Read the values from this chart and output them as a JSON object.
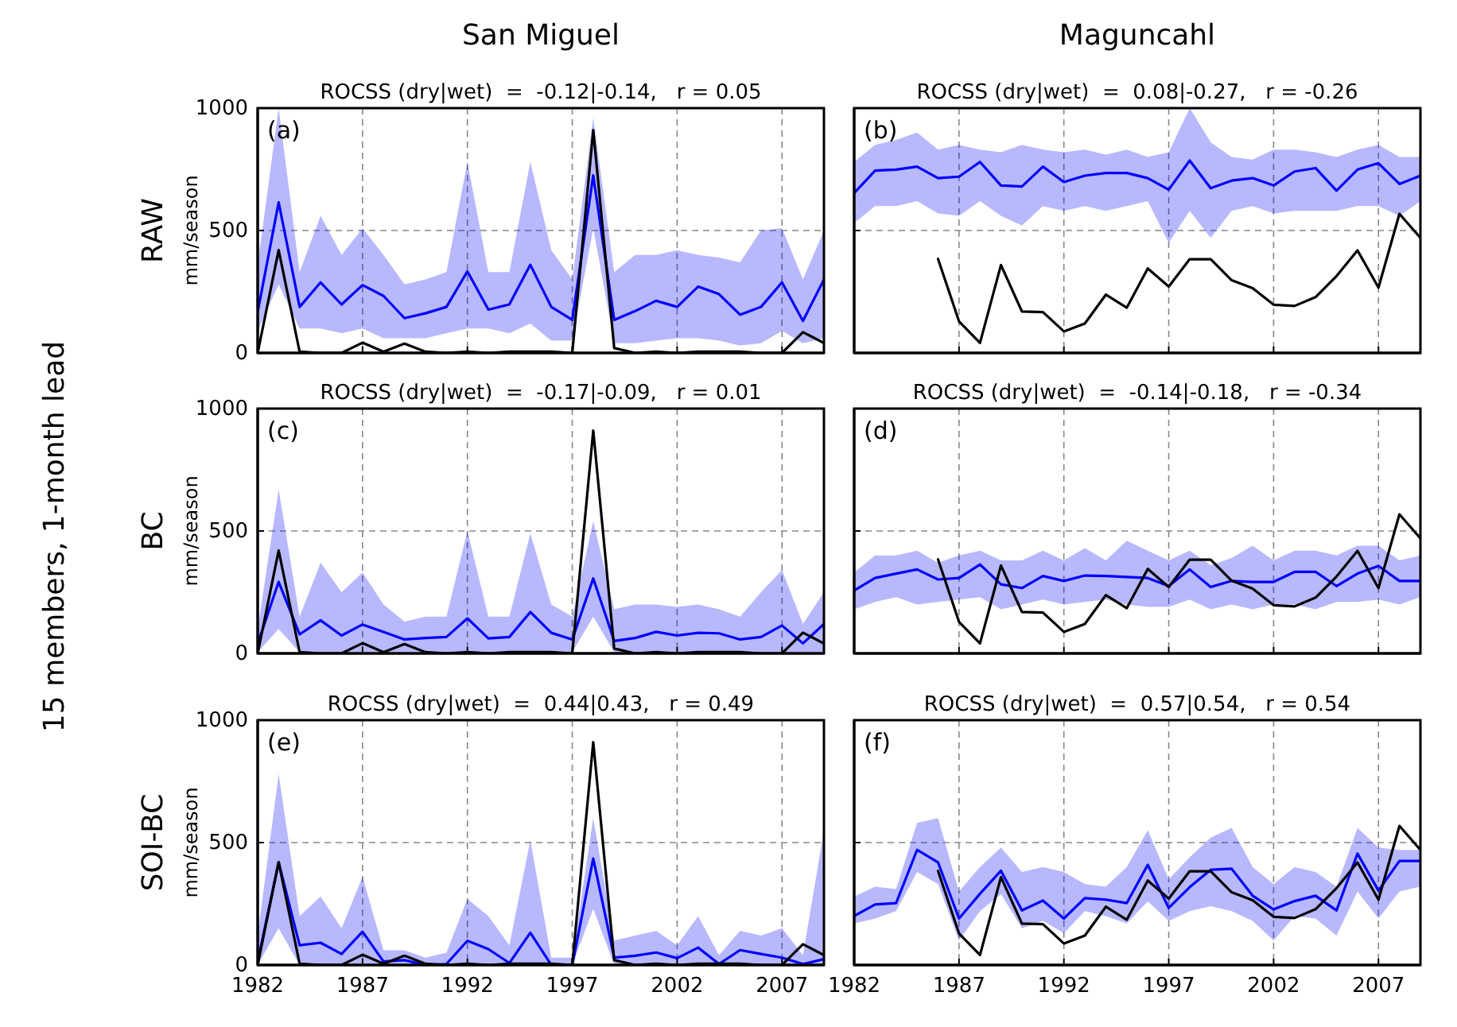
{
  "chart_data": [
    {
      "type": "line",
      "title": "ROCSS (dry|wet)  =  -0.12|-0.14,   r = 0.05",
      "ylabel": "mm/season",
      "annotations": [
        "(a)",
        "San Miguel",
        "RAW",
        "15 members, 1-month lead"
      ],
      "x": [
        1982,
        1983,
        1984,
        1985,
        1986,
        1987,
        1988,
        1989,
        1990,
        1991,
        1992,
        1993,
        1994,
        1995,
        1996,
        1997,
        1998,
        1999,
        2000,
        2001,
        2002,
        2003,
        2004,
        2005,
        2006,
        2007,
        2008,
        2009
      ],
      "xlim": [
        1982,
        2009
      ],
      "xticks": [
        1982,
        1987,
        1992,
        1997,
        2002,
        2007
      ],
      "ylim": [
        0,
        1000
      ],
      "yticks": [
        0,
        500,
        1000
      ],
      "grid": true,
      "tick_labels": "y",
      "series": [
        {
          "color": "#0000ff",
          "values": [
            167,
            615,
            188,
            288,
            198,
            277,
            233,
            142,
            162,
            188,
            333,
            177,
            198,
            360,
            188,
            135,
            725,
            135,
            171,
            213,
            188,
            271,
            240,
            156,
            188,
            288,
            131,
            300
          ],
          "lower": [
            90,
            280,
            100,
            100,
            80,
            100,
            60,
            60,
            60,
            80,
            100,
            100,
            80,
            120,
            50,
            50,
            510,
            40,
            40,
            50,
            60,
            60,
            50,
            30,
            40,
            90,
            40,
            60
          ],
          "upper": [
            360,
            1000,
            330,
            560,
            400,
            510,
            400,
            280,
            300,
            330,
            780,
            330,
            330,
            780,
            420,
            300,
            960,
            330,
            400,
            400,
            420,
            400,
            390,
            370,
            500,
            510,
            300,
            500
          ]
        },
        {
          "color": "#000000",
          "values": [
            0,
            420,
            5,
            0,
            0,
            42,
            5,
            38,
            5,
            0,
            5,
            0,
            5,
            5,
            5,
            0,
            910,
            20,
            0,
            5,
            0,
            5,
            5,
            5,
            0,
            0,
            85,
            40
          ]
        }
      ]
    },
    {
      "type": "line",
      "title": "ROCSS (dry|wet)  =  0.08|-0.27,   r = -0.26",
      "annotations": [
        "(b)",
        "Maguncahl"
      ],
      "x": [
        1982,
        1983,
        1984,
        1985,
        1986,
        1987,
        1988,
        1989,
        1990,
        1991,
        1992,
        1993,
        1994,
        1995,
        1996,
        1997,
        1998,
        1999,
        2000,
        2001,
        2002,
        2003,
        2004,
        2005,
        2006,
        2007,
        2008,
        2009
      ],
      "xlim": [
        1982,
        2009
      ],
      "xticks": [
        1982,
        1987,
        1992,
        1997,
        2002,
        2007
      ],
      "ylim": [
        0,
        1000
      ],
      "yticks": [
        0,
        500,
        1000
      ],
      "grid": true,
      "tick_labels": false,
      "series": [
        {
          "color": "#0000ff",
          "values": [
            653,
            745,
            749,
            761,
            714,
            720,
            780,
            684,
            680,
            761,
            698,
            724,
            735,
            735,
            714,
            667,
            786,
            673,
            704,
            714,
            684,
            741,
            755,
            663,
            749,
            775,
            690,
            724
          ],
          "lower": [
            530,
            600,
            600,
            620,
            570,
            560,
            620,
            560,
            520,
            600,
            580,
            600,
            580,
            600,
            620,
            450,
            580,
            470,
            580,
            600,
            570,
            580,
            580,
            580,
            600,
            600,
            560,
            620
          ],
          "upper": [
            780,
            850,
            870,
            900,
            830,
            850,
            830,
            820,
            850,
            830,
            820,
            830,
            810,
            830,
            800,
            820,
            1000,
            860,
            800,
            790,
            830,
            830,
            820,
            800,
            830,
            850,
            800,
            800
          ]
        },
        {
          "color": "#000000",
          "values": [
            null,
            null,
            null,
            null,
            384,
            129,
            41,
            359,
            169,
            167,
            88,
            120,
            238,
            185,
            345,
            271,
            383,
            383,
            297,
            265,
            197,
            192,
            228,
            314,
            419,
            267,
            568,
            470
          ]
        }
      ]
    },
    {
      "type": "line",
      "title": "ROCSS (dry|wet)  =  -0.17|-0.09,   r = 0.01",
      "ylabel": "mm/season",
      "annotations": [
        "(c)",
        "BC"
      ],
      "x": [
        1982,
        1983,
        1984,
        1985,
        1986,
        1987,
        1988,
        1989,
        1990,
        1991,
        1992,
        1993,
        1994,
        1995,
        1996,
        1997,
        1998,
        1999,
        2000,
        2001,
        2002,
        2003,
        2004,
        2005,
        2006,
        2007,
        2008,
        2009
      ],
      "xlim": [
        1982,
        2009
      ],
      "xticks": [
        1982,
        1987,
        1992,
        1997,
        2002,
        2007
      ],
      "ylim": [
        0,
        1000
      ],
      "yticks": [
        0,
        500,
        1000
      ],
      "grid": true,
      "tick_labels": "y",
      "series": [
        {
          "color": "#0000ff",
          "values": [
            40,
            292,
            78,
            135,
            73,
            118,
            88,
            57,
            63,
            67,
            143,
            61,
            67,
            169,
            84,
            57,
            306,
            51,
            63,
            88,
            73,
            84,
            82,
            57,
            67,
            114,
            41,
            120
          ],
          "lower": [
            5,
            100,
            5,
            5,
            5,
            5,
            5,
            5,
            5,
            5,
            5,
            5,
            5,
            5,
            5,
            5,
            150,
            5,
            5,
            5,
            5,
            5,
            5,
            5,
            5,
            5,
            5,
            5
          ],
          "upper": [
            100,
            670,
            150,
            370,
            250,
            330,
            200,
            130,
            150,
            150,
            500,
            150,
            150,
            490,
            200,
            150,
            540,
            180,
            200,
            200,
            190,
            200,
            180,
            150,
            250,
            340,
            120,
            250
          ]
        },
        {
          "color": "#000000",
          "values": [
            0,
            420,
            5,
            0,
            0,
            42,
            5,
            38,
            5,
            0,
            5,
            0,
            5,
            5,
            5,
            0,
            910,
            20,
            0,
            5,
            0,
            5,
            5,
            5,
            0,
            0,
            85,
            40
          ]
        }
      ]
    },
    {
      "type": "line",
      "title": "ROCSS (dry|wet)  =  -0.14|-0.18,   r = -0.34",
      "annotations": [
        "(d)"
      ],
      "x": [
        1982,
        1983,
        1984,
        1985,
        1986,
        1987,
        1988,
        1989,
        1990,
        1991,
        1992,
        1993,
        1994,
        1995,
        1996,
        1997,
        1998,
        1999,
        2000,
        2001,
        2002,
        2003,
        2004,
        2005,
        2006,
        2007,
        2008,
        2009
      ],
      "xlim": [
        1982,
        2009
      ],
      "xticks": [
        1982,
        1987,
        1992,
        1997,
        2002,
        2007
      ],
      "ylim": [
        0,
        1000
      ],
      "yticks": [
        0,
        500,
        1000
      ],
      "grid": true,
      "tick_labels": false,
      "series": [
        {
          "color": "#0000ff",
          "values": [
            257,
            308,
            326,
            343,
            302,
            308,
            363,
            282,
            267,
            316,
            296,
            318,
            316,
            312,
            308,
            275,
            343,
            271,
            296,
            292,
            292,
            333,
            333,
            275,
            326,
            357,
            296,
            296
          ],
          "lower": [
            180,
            210,
            230,
            200,
            210,
            220,
            230,
            180,
            200,
            220,
            200,
            210,
            220,
            200,
            190,
            190,
            220,
            180,
            200,
            180,
            200,
            200,
            180,
            210,
            210,
            220,
            200,
            230
          ],
          "upper": [
            330,
            400,
            400,
            420,
            370,
            400,
            420,
            380,
            380,
            420,
            380,
            430,
            380,
            460,
            420,
            380,
            420,
            360,
            390,
            440,
            380,
            420,
            420,
            400,
            440,
            440,
            380,
            400
          ]
        },
        {
          "color": "#000000",
          "values": [
            null,
            null,
            null,
            null,
            384,
            129,
            41,
            359,
            169,
            167,
            88,
            120,
            238,
            185,
            345,
            271,
            383,
            383,
            297,
            265,
            197,
            192,
            228,
            314,
            419,
            267,
            568,
            470
          ]
        }
      ]
    },
    {
      "type": "line",
      "title": "ROCSS (dry|wet)  =  0.44|0.43,   r = 0.49",
      "ylabel": "mm/season",
      "annotations": [
        "(e)",
        "SOI-BC"
      ],
      "x": [
        1982,
        1983,
        1984,
        1985,
        1986,
        1987,
        1988,
        1989,
        1990,
        1991,
        1992,
        1993,
        1994,
        1995,
        1996,
        1997,
        1998,
        1999,
        2000,
        2001,
        2002,
        2003,
        2004,
        2005,
        2006,
        2007,
        2008,
        2009
      ],
      "xlim": [
        1982,
        2009
      ],
      "xticks": [
        1982,
        1987,
        1992,
        1997,
        2002,
        2007
      ],
      "ylim": [
        0,
        1000
      ],
      "yticks": [
        0,
        500,
        1000
      ],
      "grid": true,
      "series": [
        {
          "color": "#0000ff",
          "values": [
            14,
            419,
            81,
            91,
            45,
            136,
            14,
            20,
            0,
            4,
            99,
            65,
            8,
            132,
            0,
            0,
            435,
            30,
            38,
            51,
            28,
            71,
            4,
            61,
            45,
            30,
            4,
            24
          ],
          "lower": [
            0,
            150,
            0,
            0,
            0,
            0,
            0,
            0,
            0,
            0,
            0,
            0,
            0,
            10,
            0,
            0,
            230,
            0,
            0,
            0,
            0,
            0,
            0,
            0,
            0,
            0,
            0,
            0
          ],
          "upper": [
            120,
            780,
            200,
            280,
            150,
            360,
            60,
            60,
            30,
            50,
            270,
            200,
            80,
            510,
            30,
            30,
            600,
            100,
            120,
            140,
            80,
            200,
            40,
            140,
            120,
            150,
            40,
            550
          ]
        },
        {
          "color": "#000000",
          "values": [
            0,
            420,
            5,
            0,
            0,
            42,
            5,
            38,
            5,
            0,
            5,
            0,
            5,
            5,
            5,
            0,
            910,
            20,
            0,
            5,
            0,
            5,
            5,
            5,
            0,
            0,
            85,
            40
          ]
        }
      ]
    },
    {
      "type": "line",
      "title": "ROCSS (dry|wet)  =  0.57|0.54,   r = 0.54",
      "annotations": [
        "(f)"
      ],
      "x": [
        1982,
        1983,
        1984,
        1985,
        1986,
        1987,
        1988,
        1989,
        1990,
        1991,
        1992,
        1993,
        1994,
        1995,
        1996,
        1997,
        1998,
        1999,
        2000,
        2001,
        2002,
        2003,
        2004,
        2005,
        2006,
        2007,
        2008,
        2009
      ],
      "xlim": [
        1982,
        2009
      ],
      "xticks": [
        1982,
        1987,
        1992,
        1997,
        2002,
        2007
      ],
      "ylim": [
        0,
        1000
      ],
      "yticks": [
        0,
        500,
        1000
      ],
      "grid": true,
      "tick_labels": "x",
      "series": [
        {
          "color": "#0000ff",
          "values": [
            200,
            247,
            253,
            470,
            419,
            190,
            291,
            385,
            223,
            263,
            190,
            273,
            267,
            253,
            409,
            233,
            318,
            389,
            393,
            283,
            227,
            261,
            283,
            223,
            455,
            304,
            425,
            425
          ],
          "lower": [
            170,
            190,
            220,
            380,
            330,
            100,
            220,
            290,
            150,
            180,
            130,
            220,
            200,
            170,
            260,
            180,
            220,
            240,
            220,
            180,
            100,
            200,
            190,
            120,
            300,
            190,
            300,
            320
          ],
          "upper": [
            280,
            320,
            310,
            580,
            600,
            300,
            400,
            480,
            380,
            400,
            380,
            330,
            320,
            400,
            550,
            350,
            440,
            520,
            560,
            400,
            330,
            400,
            380,
            320,
            560,
            480,
            470,
            470
          ]
        },
        {
          "color": "#000000",
          "values": [
            null,
            null,
            null,
            null,
            384,
            129,
            41,
            359,
            169,
            167,
            88,
            120,
            238,
            185,
            345,
            271,
            383,
            383,
            297,
            265,
            197,
            192,
            228,
            314,
            419,
            267,
            568,
            470
          ]
        }
      ]
    }
  ]
}
